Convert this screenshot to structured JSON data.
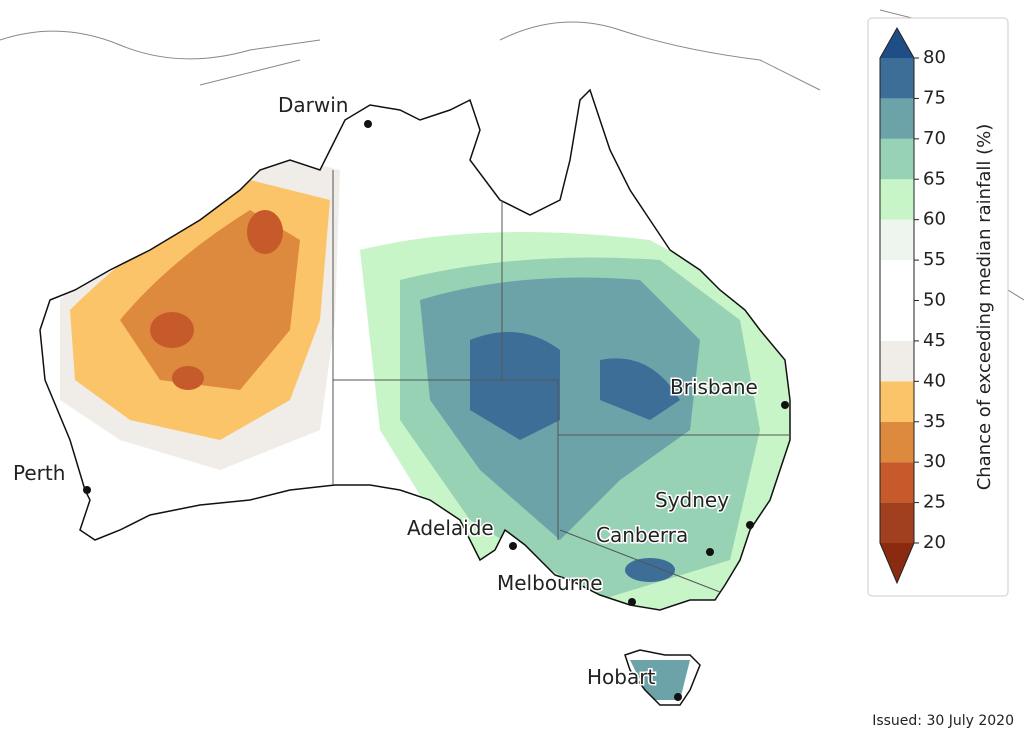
{
  "map": {
    "cities": [
      {
        "name": "Darwin"
      },
      {
        "name": "Brisbane"
      },
      {
        "name": "Sydney"
      },
      {
        "name": "Canberra"
      },
      {
        "name": "Adelaide"
      },
      {
        "name": "Melbourne"
      },
      {
        "name": "Perth"
      },
      {
        "name": "Hobart"
      }
    ],
    "colorbar": {
      "label": "Chance of exceeding median rainfall (%)",
      "ticks": [
        20,
        25,
        30,
        35,
        40,
        45,
        50,
        55,
        60,
        65,
        70,
        75,
        80
      ],
      "colors": [
        "#a0401e",
        "#c75a2a",
        "#dd8a3f",
        "#fcc468",
        "#f0ece8",
        "#ffffff",
        "#ffffff",
        "#edf5ee",
        "#c8f5c8",
        "#98d2b4",
        "#6ba3a8",
        "#3c6e98"
      ],
      "extend_colors": [
        "#8a2a10",
        "#1f4e86"
      ]
    },
    "issued": "Issued: 30 July 2020"
  }
}
